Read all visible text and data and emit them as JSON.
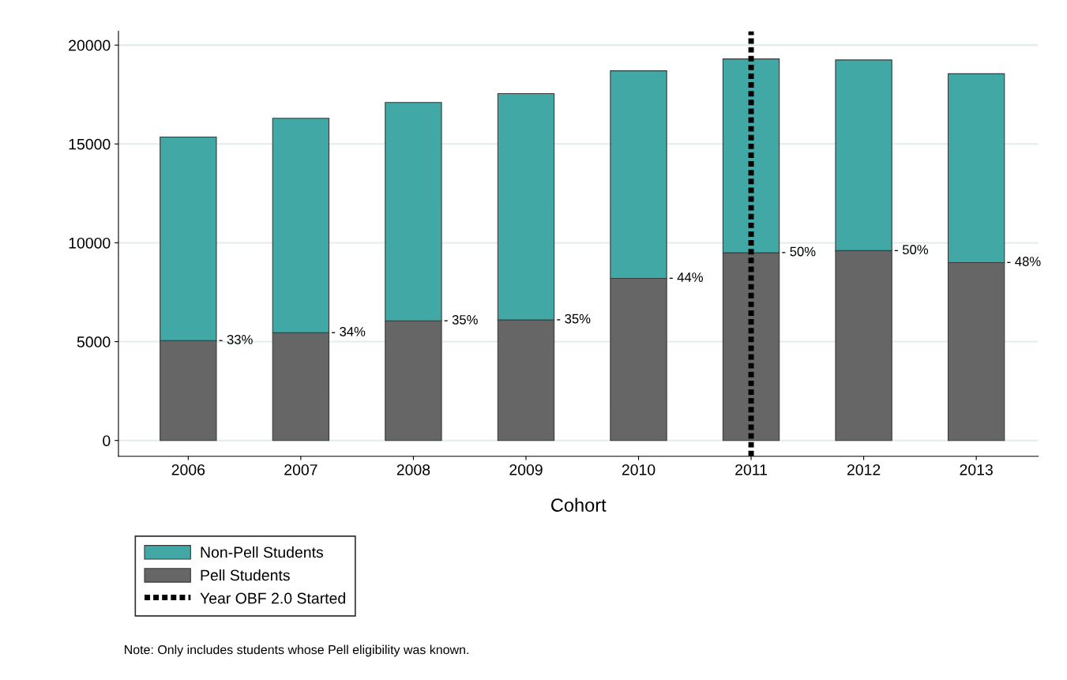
{
  "chart_data": {
    "type": "bar",
    "stacked": true,
    "xlabel": "Cohort",
    "categories": [
      "2006",
      "2007",
      "2008",
      "2009",
      "2010",
      "2011",
      "2012",
      "2013"
    ],
    "series": [
      {
        "name": "Pell Students",
        "color": "#666666",
        "values": [
          5050,
          5450,
          6050,
          6100,
          8200,
          9500,
          9600,
          9000
        ]
      },
      {
        "name": "Non-Pell Students",
        "color": "#41a8a5",
        "values": [
          10300,
          10850,
          11050,
          11450,
          10500,
          9800,
          9650,
          9550
        ]
      }
    ],
    "ylim": [
      -800,
      20700
    ],
    "yticks": [
      0,
      5000,
      10000,
      15000,
      20000
    ],
    "grid": "y",
    "legend": "bottom",
    "ref_lines": [
      {
        "axis": "x",
        "value": "2011",
        "label": "Year OBF 2.0 Started",
        "color": "#000000",
        "line_style": "dotted"
      }
    ],
    "annotations": [
      {
        "text": "- 33%",
        "x": "2006",
        "y": 5050
      },
      {
        "text": "- 34%",
        "x": "2007",
        "y": 5450
      },
      {
        "text": "- 35%",
        "x": "2008",
        "y": 6050
      },
      {
        "text": "- 35%",
        "x": "2009",
        "y": 6100
      },
      {
        "text": "- 44%",
        "x": "2010",
        "y": 8200
      },
      {
        "text": "- 50%",
        "x": "2011",
        "y": 9500
      },
      {
        "text": "- 50%",
        "x": "2012",
        "y": 9600
      },
      {
        "text": "- 48%",
        "x": "2013",
        "y": 9000
      },
      "Note: Only includes students whose Pell eligibility was known."
    ]
  }
}
